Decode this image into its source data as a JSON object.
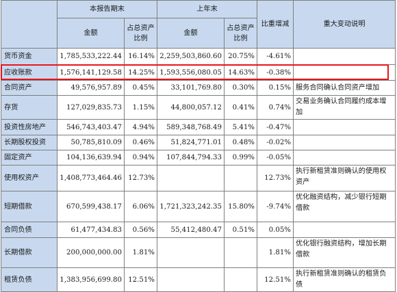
{
  "headers": {
    "item": "",
    "current_period_end": "本报告期末",
    "prior_year_end": "上年末",
    "ratio_change": "比重增减",
    "explanation": "重大变动说明",
    "amount": "金额",
    "pct_total_assets": "占总资产比例"
  },
  "rows": [
    {
      "item": "货币资金",
      "cur_amount": "1,785,533,222.44",
      "cur_pct": "16.14%",
      "prev_amount": "2,259,503,860.60",
      "prev_pct": "20.75%",
      "change": "-4.61%",
      "note": ""
    },
    {
      "item": "应收账款",
      "cur_amount": "1,576,141,129.58",
      "cur_pct": "14.25%",
      "prev_amount": "1,593,556,080.05",
      "prev_pct": "14.63%",
      "change": "-0.38%",
      "note": ""
    },
    {
      "item": "合同资产",
      "cur_amount": "49,576,957.89",
      "cur_pct": "0.45%",
      "prev_amount": "33,101,769.80",
      "prev_pct": "0.30%",
      "change": "0.15%",
      "note": "服务合同确认合同资产增加"
    },
    {
      "item": "存货",
      "cur_amount": "127,029,835.73",
      "cur_pct": "1.15%",
      "prev_amount": "44,800,057.12",
      "prev_pct": "0.41%",
      "change": "0.74%",
      "note": "交易业务确认合同履约成本增加"
    },
    {
      "item": "投资性房地产",
      "cur_amount": "546,743,403.47",
      "cur_pct": "4.94%",
      "prev_amount": "589,348,768.49",
      "prev_pct": "5.41%",
      "change": "-0.47%",
      "note": ""
    },
    {
      "item": "长期股权投资",
      "cur_amount": "50,785,810.09",
      "cur_pct": "0.46%",
      "prev_amount": "51,824,771.01",
      "prev_pct": "0.48%",
      "change": "-0.02%",
      "note": ""
    },
    {
      "item": "固定资产",
      "cur_amount": "104,136,639.94",
      "cur_pct": "0.94%",
      "prev_amount": "107,844,794.33",
      "prev_pct": "0.99%",
      "change": "-0.05%",
      "note": ""
    },
    {
      "item": "使用权资产",
      "cur_amount": "1,408,773,464.46",
      "cur_pct": "12.73%",
      "prev_amount": "",
      "prev_pct": "",
      "change": "12.73%",
      "note": "执行新租赁准则确认的使用权资产"
    },
    {
      "item": "短期借款",
      "cur_amount": "670,599,438.17",
      "cur_pct": "6.06%",
      "prev_amount": "1,721,323,242.35",
      "prev_pct": "15.80%",
      "change": "-9.74%",
      "note": "优化融资结构，减少银行短期借款"
    },
    {
      "item": "合同负债",
      "cur_amount": "61,477,434.83",
      "cur_pct": "0.56%",
      "prev_amount": "55,412,480.47",
      "prev_pct": "0.51%",
      "change": "0.05%",
      "note": ""
    },
    {
      "item": "长期借款",
      "cur_amount": "200,000,000.00",
      "cur_pct": "1.81%",
      "prev_amount": "",
      "prev_pct": "",
      "change": "1.81%",
      "note": "优化银行融资结构，增加长期借款"
    },
    {
      "item": "租赁负债",
      "cur_amount": "1,383,956,699.80",
      "cur_pct": "12.51%",
      "prev_amount": "",
      "prev_pct": "",
      "change": "12.51%",
      "note": "执行新租赁准则确认的租赁负债"
    }
  ],
  "highlight_color": "#e8141b",
  "header_bg": "#c8d9ef"
}
